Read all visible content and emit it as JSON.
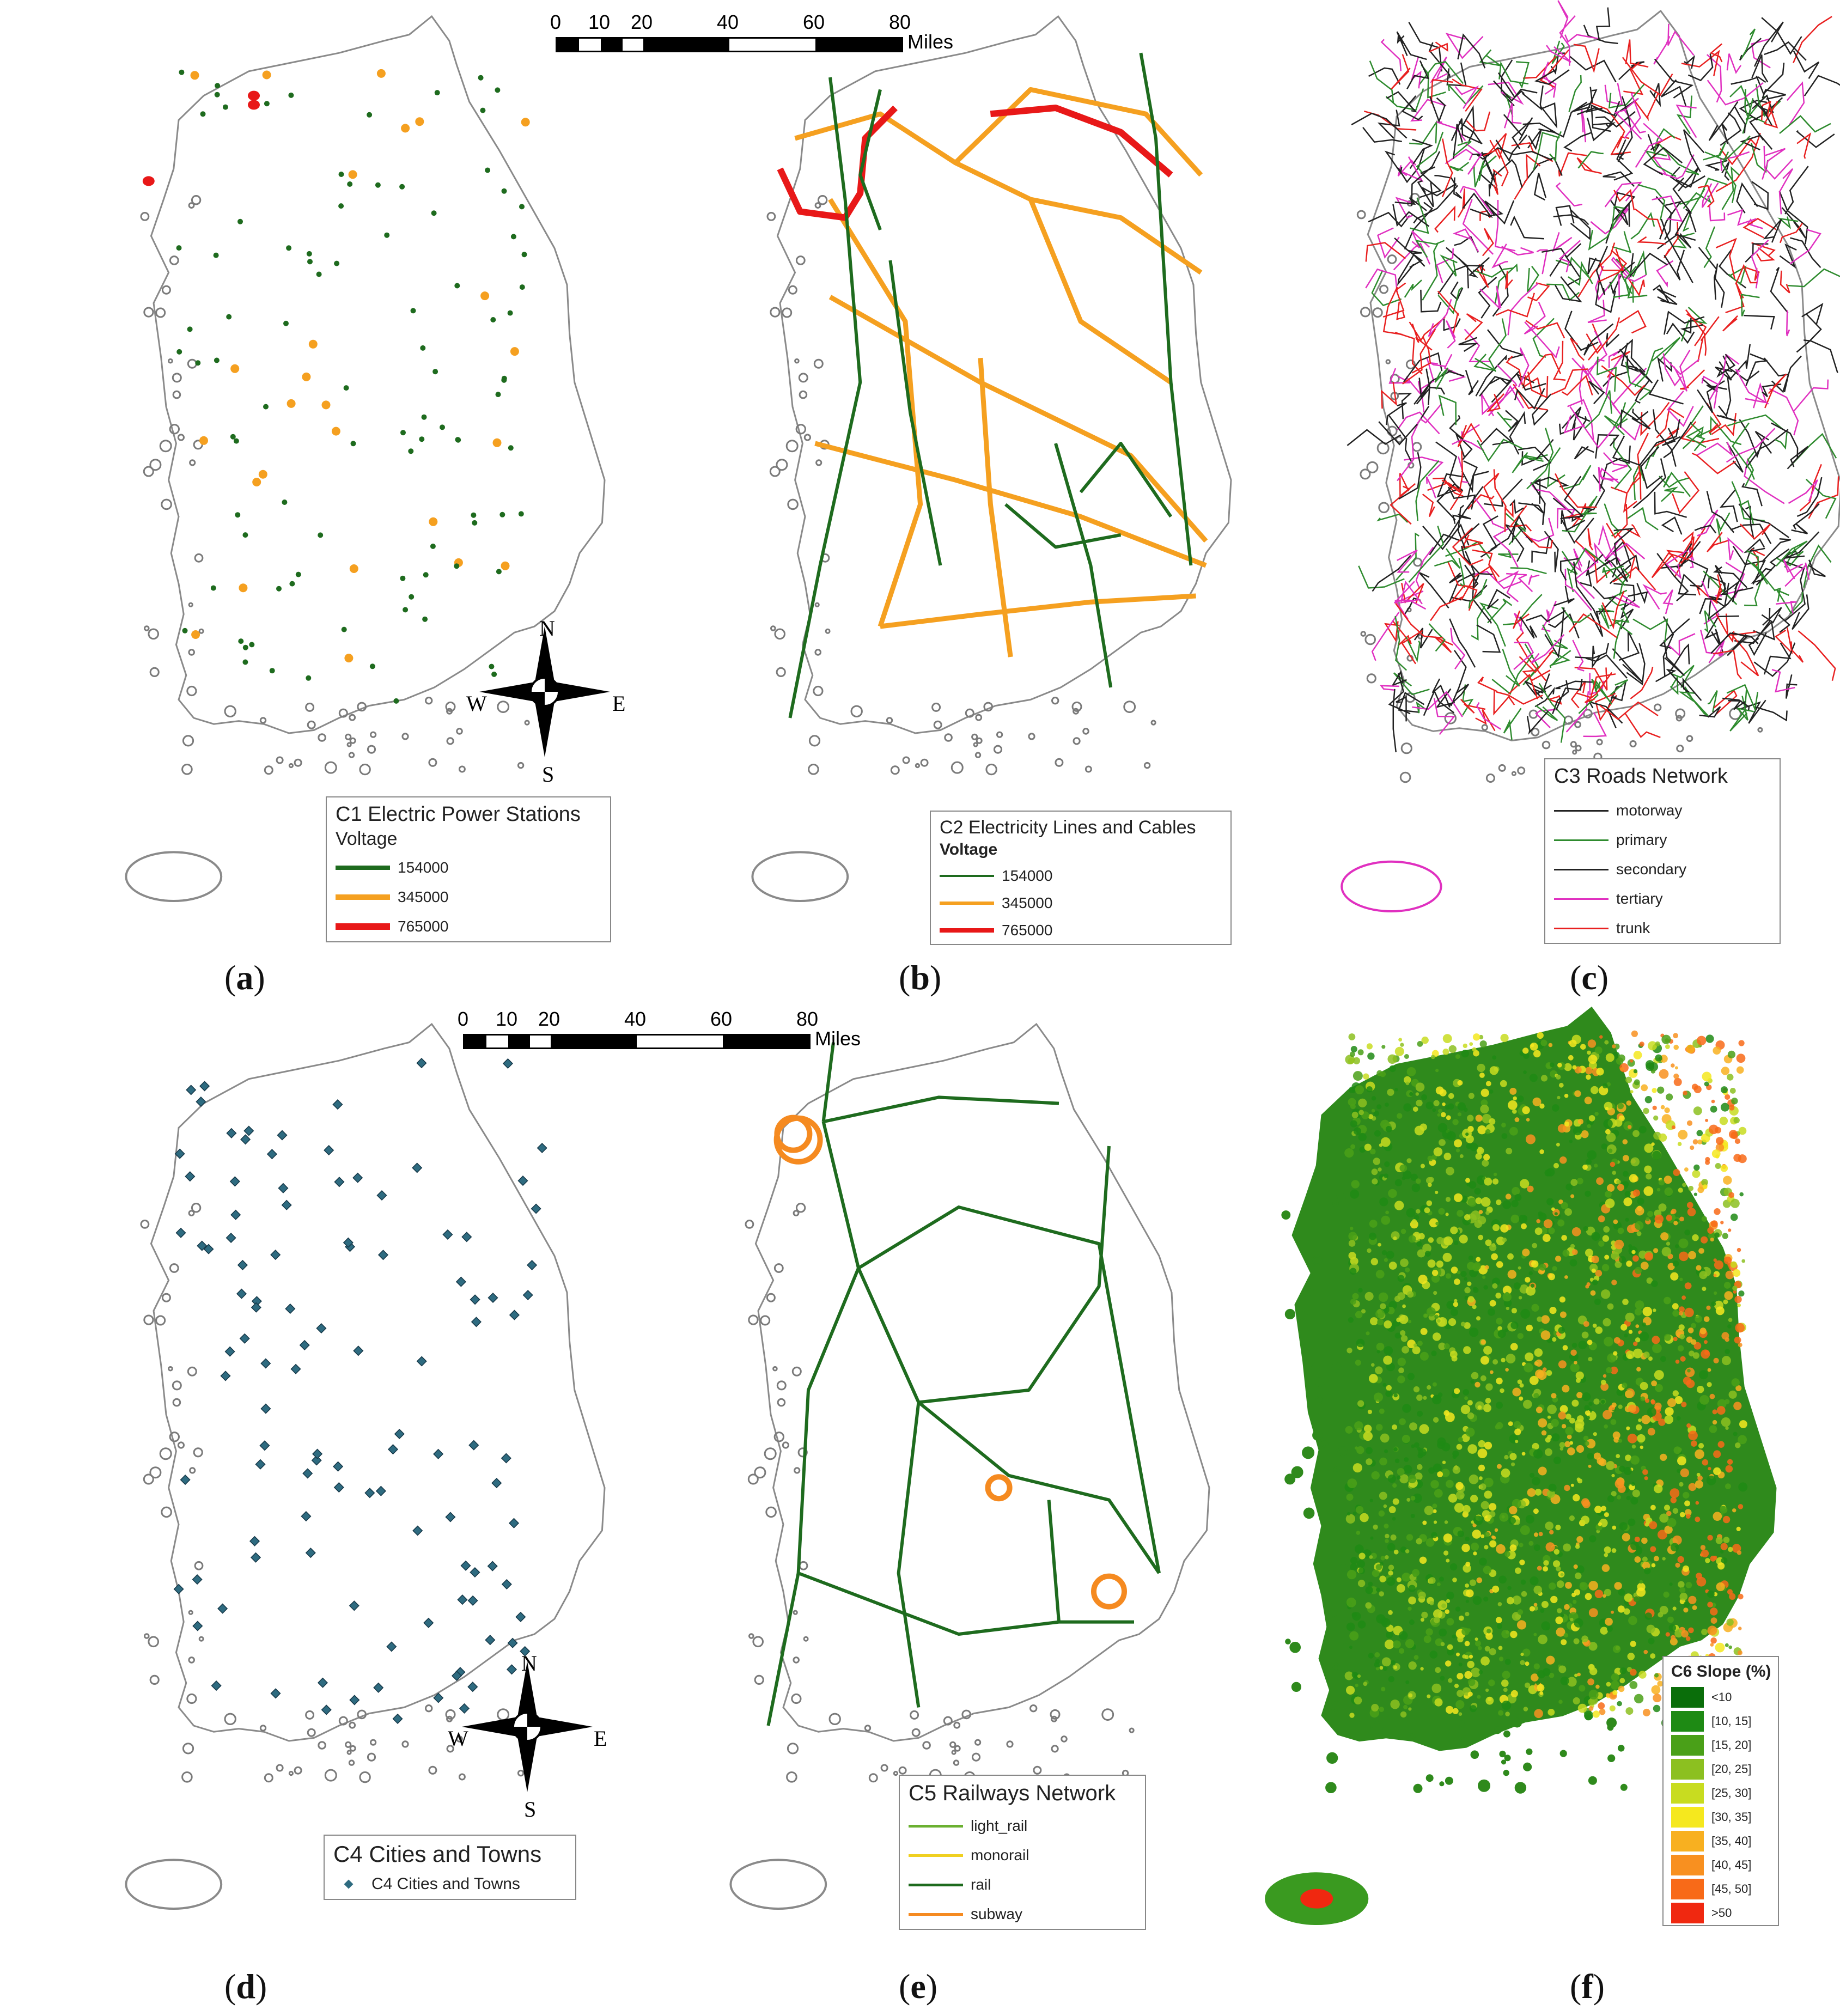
{
  "scale_bar": {
    "ticks": [
      "0",
      "10",
      "20",
      "40",
      "60",
      "80"
    ],
    "unit": "Miles"
  },
  "compass": {
    "n": "N",
    "s": "S",
    "e": "E",
    "w": "W"
  },
  "panels": {
    "a": {
      "label_open": "(",
      "label_letter": "a",
      "label_close": ")",
      "legend": {
        "title": "C1 Electric Power Stations",
        "subtitle": "Voltage",
        "items": [
          {
            "label": "154000",
            "color": "#1e6b1e"
          },
          {
            "label": "345000",
            "color": "#f5a020"
          },
          {
            "label": "765000",
            "color": "#e81818"
          }
        ]
      }
    },
    "b": {
      "label_open": "(",
      "label_letter": "b",
      "label_close": ")",
      "legend": {
        "title": "C2 Electricity Lines and Cables",
        "subtitle": "Voltage",
        "items": [
          {
            "label": "154000",
            "color": "#1e6b1e"
          },
          {
            "label": "345000",
            "color": "#f5a020"
          },
          {
            "label": "765000",
            "color": "#e81818"
          }
        ]
      }
    },
    "c": {
      "label_open": "(",
      "label_letter": "c",
      "label_close": ")",
      "legend": {
        "title": "C3 Roads Network",
        "items": [
          {
            "label": "motorway",
            "color": "#222222"
          },
          {
            "label": "primary",
            "color": "#2e8b2e"
          },
          {
            "label": "secondary",
            "color": "#222222"
          },
          {
            "label": "tertiary",
            "color": "#e030c0"
          },
          {
            "label": "trunk",
            "color": "#e82020"
          }
        ]
      }
    },
    "d": {
      "label_open": "(",
      "label_letter": "d",
      "label_close": ")",
      "legend": {
        "title": "C4 Cities and Towns",
        "items": [
          {
            "label": "C4 Cities and Towns",
            "color": "#2e6b80"
          }
        ]
      }
    },
    "e": {
      "label_open": "(",
      "label_letter": "e",
      "label_close": ")",
      "legend": {
        "title": "C5 Railways Network",
        "items": [
          {
            "label": "light_rail",
            "color": "#6ab030"
          },
          {
            "label": "monorail",
            "color": "#f0d020"
          },
          {
            "label": "rail",
            "color": "#1e6b1e"
          },
          {
            "label": "subway",
            "color": "#f58a20"
          }
        ]
      }
    },
    "f": {
      "label_open": "(",
      "label_letter": "f",
      "label_close": ")",
      "legend": {
        "title": "C6 Slope (%)",
        "items": [
          {
            "label": "<10",
            "color": "#0a6e0a"
          },
          {
            "label": "[10, 15]",
            "color": "#1e8a14"
          },
          {
            "label": "[15, 20]",
            "color": "#4aa018"
          },
          {
            "label": "[20, 25]",
            "color": "#8cc020"
          },
          {
            "label": "[25, 30]",
            "color": "#c8dc20"
          },
          {
            "label": "[30, 35]",
            "color": "#f5e81e"
          },
          {
            "label": "[35, 40]",
            "color": "#f8b020"
          },
          {
            "label": "[40, 45]",
            "color": "#f89020"
          },
          {
            "label": "[45, 50]",
            "color": "#f86a18"
          },
          {
            "label": ">50",
            "color": "#f02810"
          }
        ]
      }
    }
  }
}
